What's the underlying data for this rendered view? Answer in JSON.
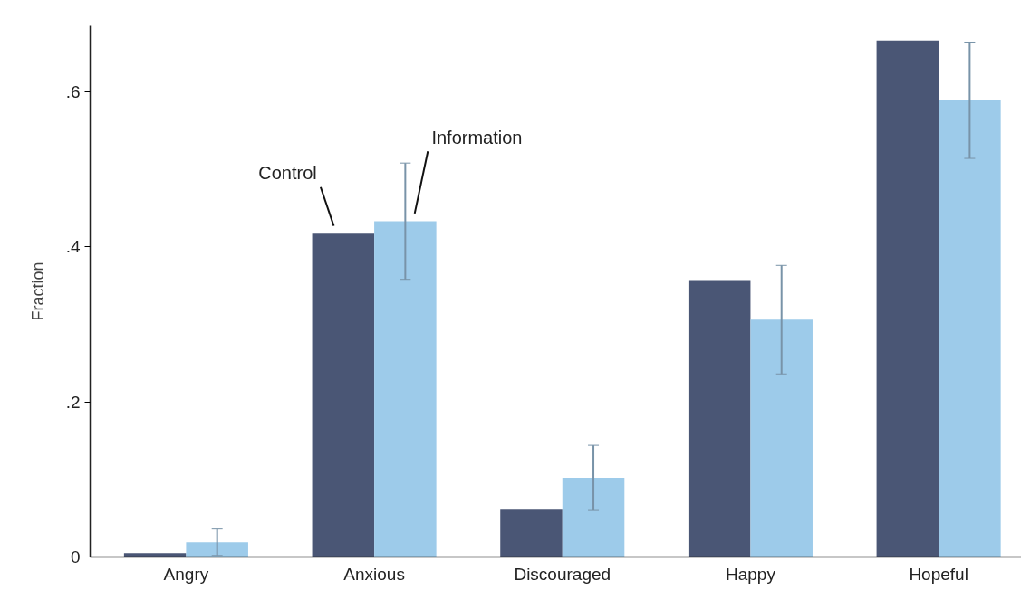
{
  "chart_data": {
    "type": "bar",
    "ylabel": "Fraction",
    "categories": [
      "Angry",
      "Anxious",
      "Discouraged",
      "Happy",
      "Hopeful"
    ],
    "series": [
      {
        "name": "Control",
        "color": "#4a5675",
        "values": [
          0.005,
          0.417,
          0.061,
          0.357,
          0.666
        ]
      },
      {
        "name": "Information",
        "color": "#9dcbea",
        "values": [
          0.019,
          0.433,
          0.102,
          0.306,
          0.589
        ],
        "errors": [
          0.017,
          0.075,
          0.042,
          0.07,
          0.075
        ]
      }
    ],
    "ylim": [
      0,
      0.685
    ],
    "yticks": [
      0,
      {
        "value": 0.2,
        "label": ".2"
      },
      {
        "value": 0.4,
        "label": ".4"
      },
      {
        "value": 0.6,
        "label": ".6"
      }
    ],
    "grid": false
  }
}
